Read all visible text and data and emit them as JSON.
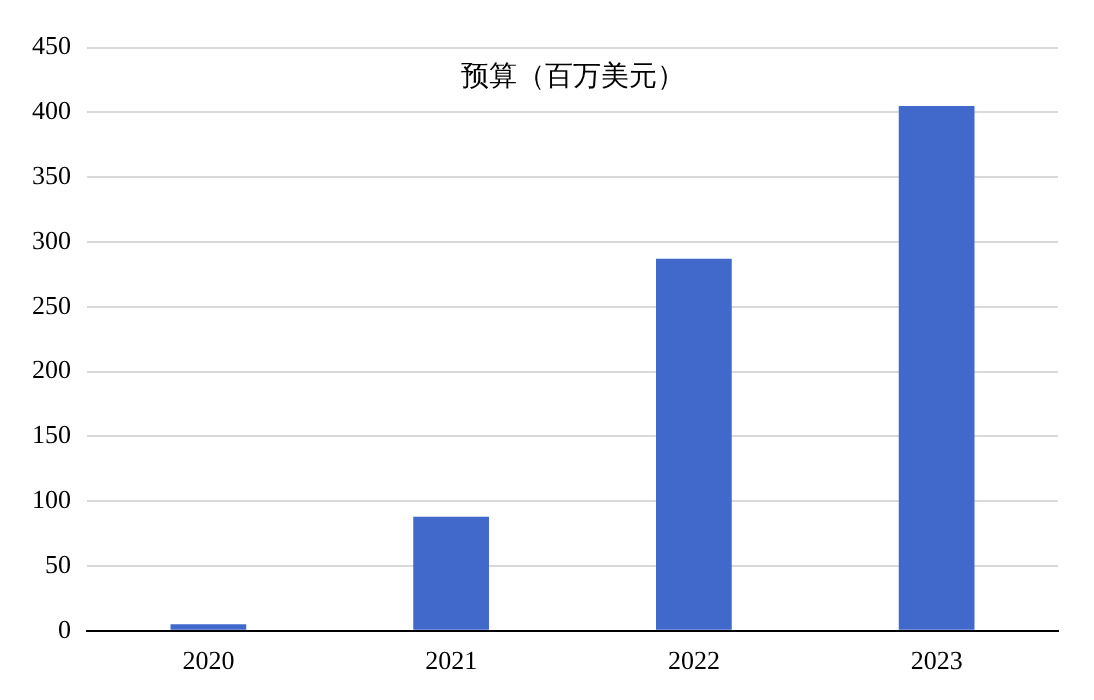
{
  "chart_data": {
    "type": "bar",
    "title": "预算（百万美元）",
    "categories": [
      "2020",
      "2021",
      "2022",
      "2023"
    ],
    "values": [
      5,
      88,
      287,
      405
    ],
    "color": "#4169cc",
    "ylim": [
      0,
      450
    ],
    "yticks": [
      0,
      50,
      100,
      150,
      200,
      250,
      300,
      350,
      400,
      450
    ],
    "grid": "y"
  }
}
